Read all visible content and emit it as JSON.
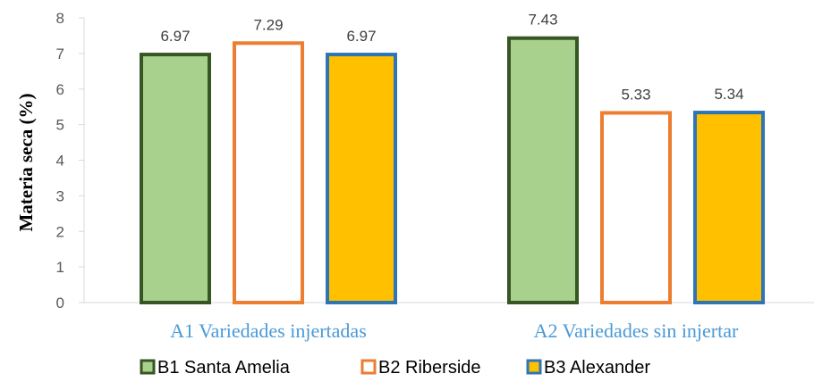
{
  "chart_data": {
    "type": "bar",
    "categories": [
      "A1 Variedades injertadas",
      "A2 Variedades sin injertar"
    ],
    "series": [
      {
        "name": "B1 Santa Amelia",
        "values": [
          6.97,
          7.43
        ],
        "fill": "#a9d18e",
        "stroke": "#375623"
      },
      {
        "name": "B2 Riberside",
        "values": [
          7.29,
          5.33
        ],
        "fill": "#ffffff",
        "stroke": "#ed7d31"
      },
      {
        "name": "B3 Alexander",
        "values": [
          6.97,
          5.34
        ],
        "fill": "#ffc000",
        "stroke": "#2e75b6"
      }
    ],
    "value_labels": [
      [
        "6.97",
        "7.43"
      ],
      [
        "7.29",
        "5.33"
      ],
      [
        "6.97",
        "5.34"
      ]
    ],
    "ylabel": "Materia seca (%)",
    "yticks": [
      "0",
      "1",
      "2",
      "3",
      "4",
      "5",
      "6",
      "7",
      "8"
    ],
    "ylim": [
      0,
      8
    ],
    "grid": false,
    "legend_position": "bottom"
  }
}
